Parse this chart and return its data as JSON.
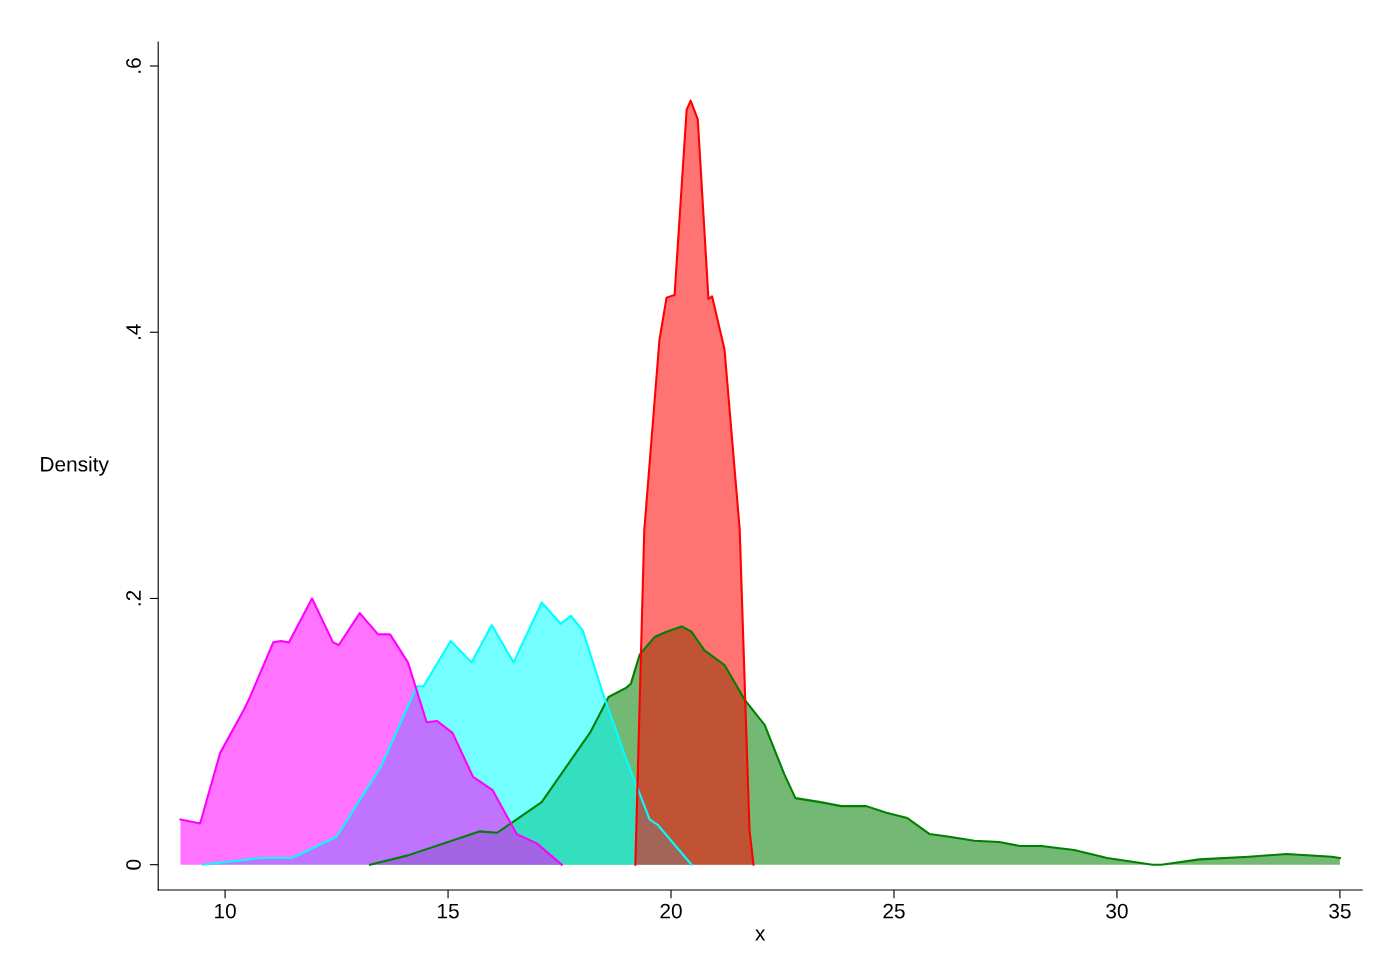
{
  "chart_data": {
    "type": "area",
    "xlabel": "x",
    "ylabel": "Density",
    "xlim": [
      8.5,
      35.5
    ],
    "xticks": [
      10,
      15,
      20,
      25,
      30,
      35
    ],
    "ylim": [
      -0.019,
      0.618
    ],
    "yticks": [
      {
        "value": 0,
        "label": "0"
      },
      {
        "value": 0.2,
        "label": ".2"
      },
      {
        "value": 0.4,
        "label": ".4"
      },
      {
        "value": 0.6,
        "label": ".6"
      }
    ],
    "grid": false,
    "legend": false,
    "series": [
      {
        "color": "#008000",
        "x": [
          13.25,
          14.1,
          14.9,
          15.7,
          16.1,
          16.45,
          17.1,
          18.2,
          18.6,
          19.0,
          19.1,
          19.3,
          19.63,
          19.9,
          20.24,
          20.46,
          20.75,
          21.2,
          21.65,
          22.1,
          22.54,
          22.79,
          23.35,
          23.82,
          24.38,
          24.83,
          25.3,
          25.8,
          26.24,
          26.8,
          27.36,
          27.83,
          28.3,
          29.04,
          29.78,
          30.8,
          31.0,
          31.85,
          32.96,
          33.8,
          34.82,
          35.0
        ],
        "values": [
          0,
          0.007,
          0.016,
          0.025,
          0.024,
          0.032,
          0.047,
          0.1,
          0.126,
          0.133,
          0.136,
          0.158,
          0.171,
          0.175,
          0.179,
          0.175,
          0.161,
          0.15,
          0.124,
          0.105,
          0.068,
          0.05,
          0.047,
          0.044,
          0.044,
          0.039,
          0.035,
          0.023,
          0.021,
          0.018,
          0.017,
          0.014,
          0.014,
          0.011,
          0.005,
          0,
          0,
          0.004,
          0.006,
          0.008,
          0.006,
          0.005
        ]
      },
      {
        "color": "#00ffff",
        "x": [
          9.5,
          10.8,
          11.5,
          12.5,
          13.5,
          14.3,
          14.45,
          15.06,
          15.53,
          15.98,
          16.47,
          17.1,
          17.53,
          17.75,
          18.02,
          18.47,
          19.0,
          19.52,
          19.7,
          20.46
        ],
        "values": [
          0,
          0.005,
          0.005,
          0.021,
          0.074,
          0.134,
          0.134,
          0.168,
          0.152,
          0.18,
          0.152,
          0.197,
          0.181,
          0.187,
          0.176,
          0.129,
          0.079,
          0.034,
          0.03,
          0
        ]
      },
      {
        "color": "#ff00ff",
        "x": [
          9.0,
          9.44,
          9.89,
          10.4,
          10.56,
          11.08,
          11.25,
          11.43,
          11.95,
          12.42,
          12.55,
          13.02,
          13.43,
          13.7,
          14.1,
          14.52,
          14.75,
          15.1,
          15.56,
          16.0,
          16.54,
          16.99,
          17.55
        ],
        "values": [
          0.034,
          0.031,
          0.084,
          0.115,
          0.126,
          0.167,
          0.168,
          0.167,
          0.2,
          0.167,
          0.165,
          0.189,
          0.173,
          0.173,
          0.152,
          0.107,
          0.108,
          0.099,
          0.066,
          0.056,
          0.023,
          0.016,
          0
        ]
      },
      {
        "color": "#ff0000",
        "x": [
          19.2,
          19.4,
          19.74,
          19.9,
          20.08,
          20.35,
          20.44,
          20.6,
          20.84,
          20.92,
          21.2,
          21.54,
          21.76,
          21.85
        ],
        "values": [
          0,
          0.251,
          0.394,
          0.426,
          0.428,
          0.567,
          0.574,
          0.56,
          0.425,
          0.427,
          0.387,
          0.252,
          0.026,
          0
        ]
      }
    ]
  }
}
